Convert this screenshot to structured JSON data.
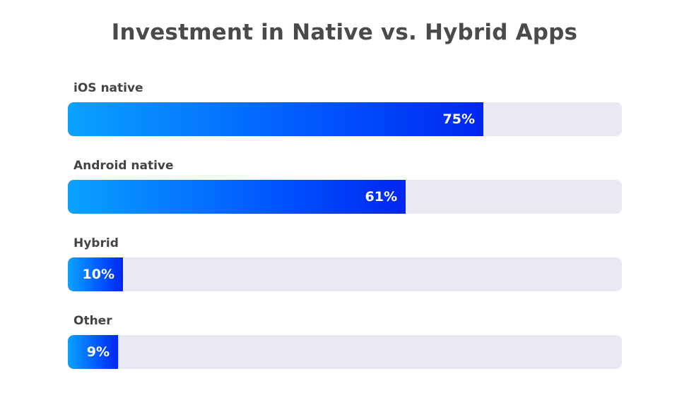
{
  "chart_data": {
    "type": "bar",
    "orientation": "horizontal",
    "title": "Investment in Native vs. Hybrid Apps",
    "categories": [
      "iOS native",
      "Android native",
      "Hybrid",
      "Other"
    ],
    "values": [
      75,
      61,
      10,
      9
    ],
    "value_labels": [
      "75%",
      "61%",
      "10%",
      "9%"
    ],
    "unit": "%",
    "xlim": [
      0,
      100
    ],
    "grid": false,
    "legend": "none",
    "colors": {
      "bar_start": "#0aa2ff",
      "bar_end": "#0026f0",
      "track": "#e9e9f3",
      "value_text": "#ffffff",
      "label_text": "#444444",
      "title_text": "#4a4a4a"
    }
  }
}
